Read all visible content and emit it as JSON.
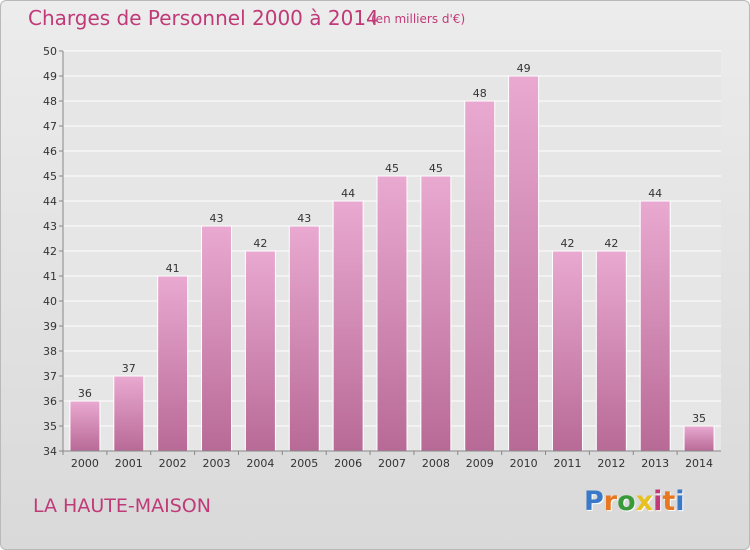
{
  "header": {
    "title": "Charges de Personnel 2000 à 2014",
    "subtitle": "(en milliers d'€)"
  },
  "footer": {
    "commune": "LA HAUTE-MAISON",
    "logo": "Proxiti"
  },
  "colors": {
    "title": "#c03a78",
    "bar_top": "#e9a9d0",
    "bar_bottom": "#b86a96",
    "logo_letters": [
      "#3a78c8",
      "#e87722",
      "#3a9a3a",
      "#e8c020",
      "#c03a78",
      "#e87722",
      "#3a78c8"
    ]
  },
  "chart_data": {
    "type": "bar",
    "title": "Charges de Personnel 2000 à 2014",
    "subtitle": "(en milliers d'€)",
    "categories": [
      "2000",
      "2001",
      "2002",
      "2003",
      "2004",
      "2005",
      "2006",
      "2007",
      "2008",
      "2009",
      "2010",
      "2011",
      "2012",
      "2013",
      "2014"
    ],
    "values": [
      36,
      37,
      41,
      43,
      42,
      43,
      44,
      45,
      45,
      48,
      49,
      42,
      42,
      44,
      35
    ],
    "ylim": [
      34,
      50
    ],
    "yticks": [
      34,
      35,
      36,
      37,
      38,
      39,
      40,
      41,
      42,
      43,
      44,
      45,
      46,
      47,
      48,
      49,
      50
    ],
    "grid": true,
    "data_labels": true
  }
}
